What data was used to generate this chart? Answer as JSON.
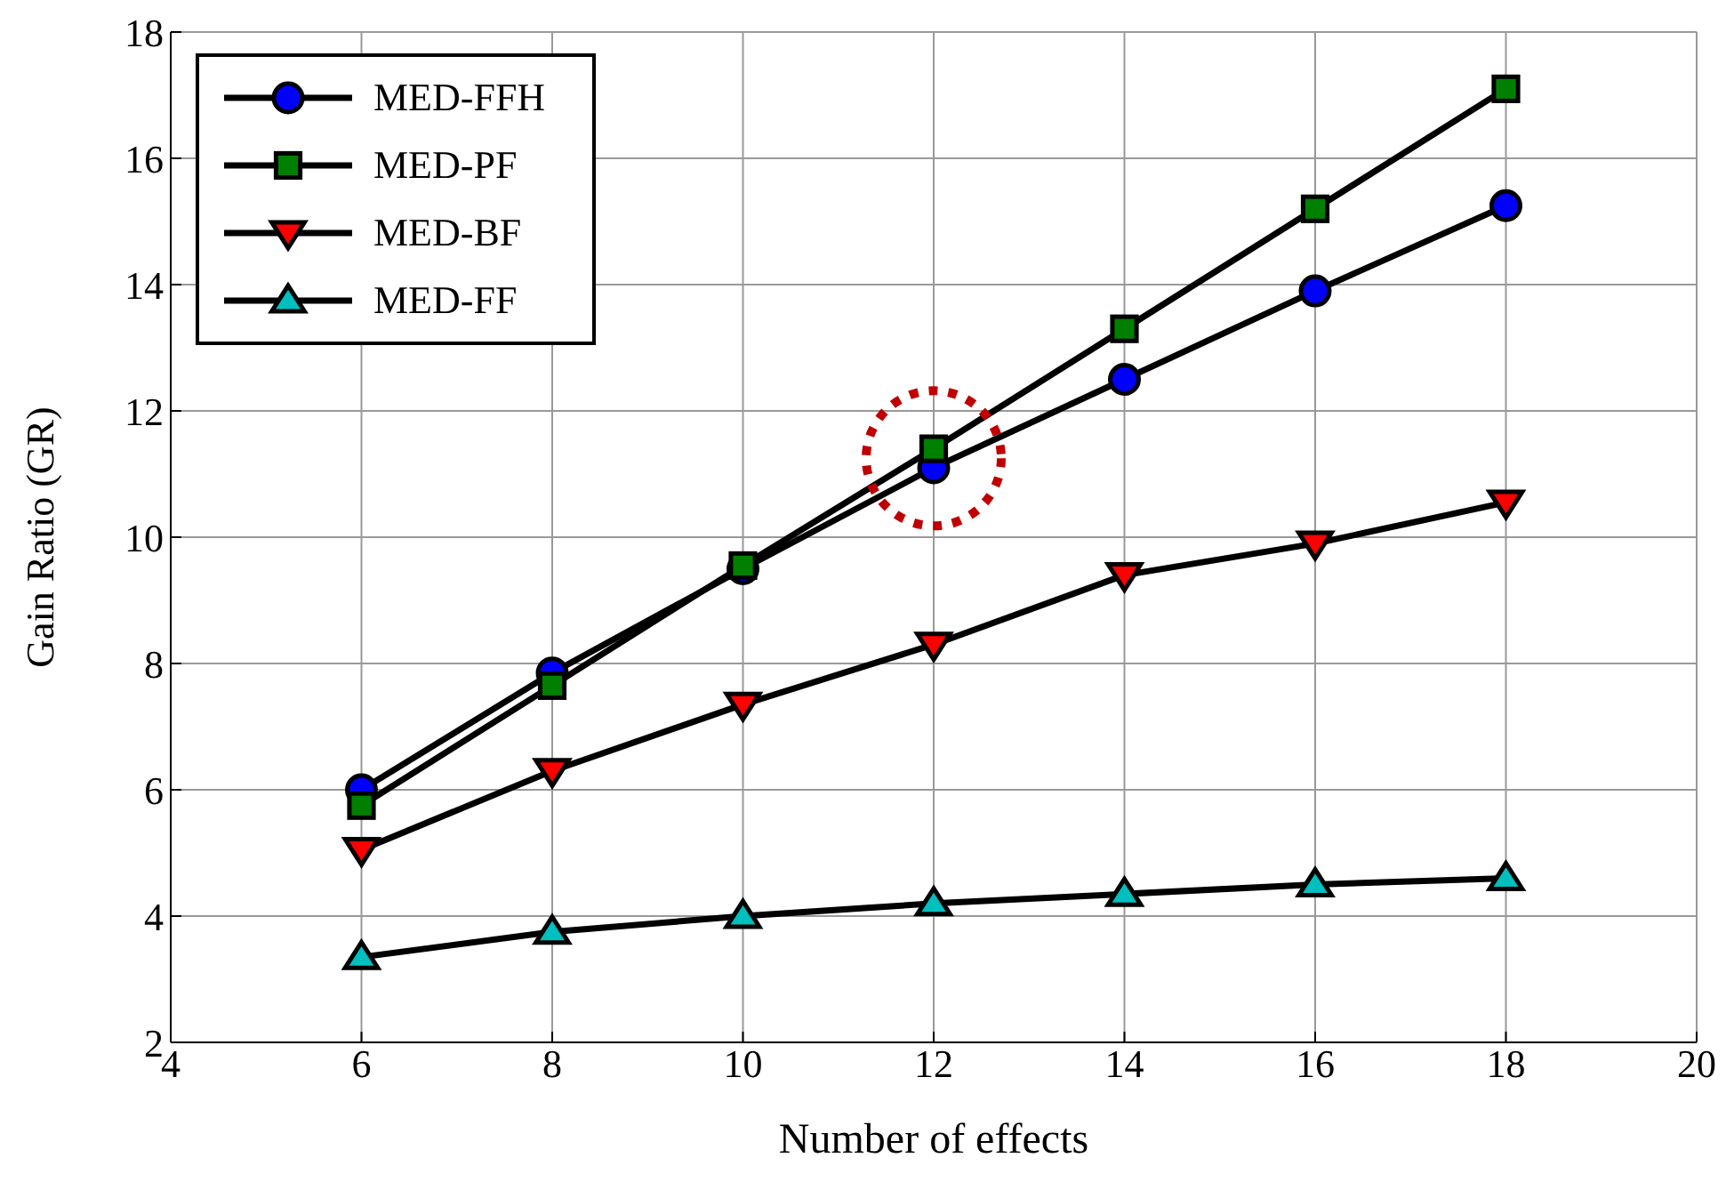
{
  "chart_data": {
    "type": "line",
    "xlabel": "Number of effects",
    "ylabel": "Gain Ratio (GR)",
    "x": [
      6,
      8,
      10,
      12,
      14,
      16,
      18
    ],
    "series": [
      {
        "name": "MED-FFH",
        "color": "#0000ff",
        "marker": "circle",
        "values": [
          6.0,
          7.85,
          9.5,
          11.1,
          12.5,
          13.9,
          15.25
        ]
      },
      {
        "name": "MED-PF",
        "color": "#007f00",
        "marker": "square",
        "values": [
          5.75,
          7.65,
          9.55,
          11.4,
          13.3,
          15.2,
          17.1
        ]
      },
      {
        "name": "MED-BF",
        "color": "#ff0000",
        "marker": "triangle-down",
        "values": [
          5.05,
          6.3,
          7.35,
          8.3,
          9.4,
          9.9,
          10.55
        ]
      },
      {
        "name": "MED-FF",
        "color": "#00bfbf",
        "marker": "triangle",
        "values": [
          3.35,
          3.75,
          4.0,
          4.2,
          4.35,
          4.5,
          4.6
        ]
      }
    ],
    "xlim": [
      4,
      20
    ],
    "xticks": [
      4,
      6,
      8,
      10,
      12,
      14,
      16,
      18,
      20
    ],
    "ylim": [
      2,
      18
    ],
    "yticks": [
      2,
      4,
      6,
      8,
      10,
      12,
      14,
      16,
      18
    ],
    "grid": true,
    "legend": "top left",
    "line_style": "solid"
  }
}
